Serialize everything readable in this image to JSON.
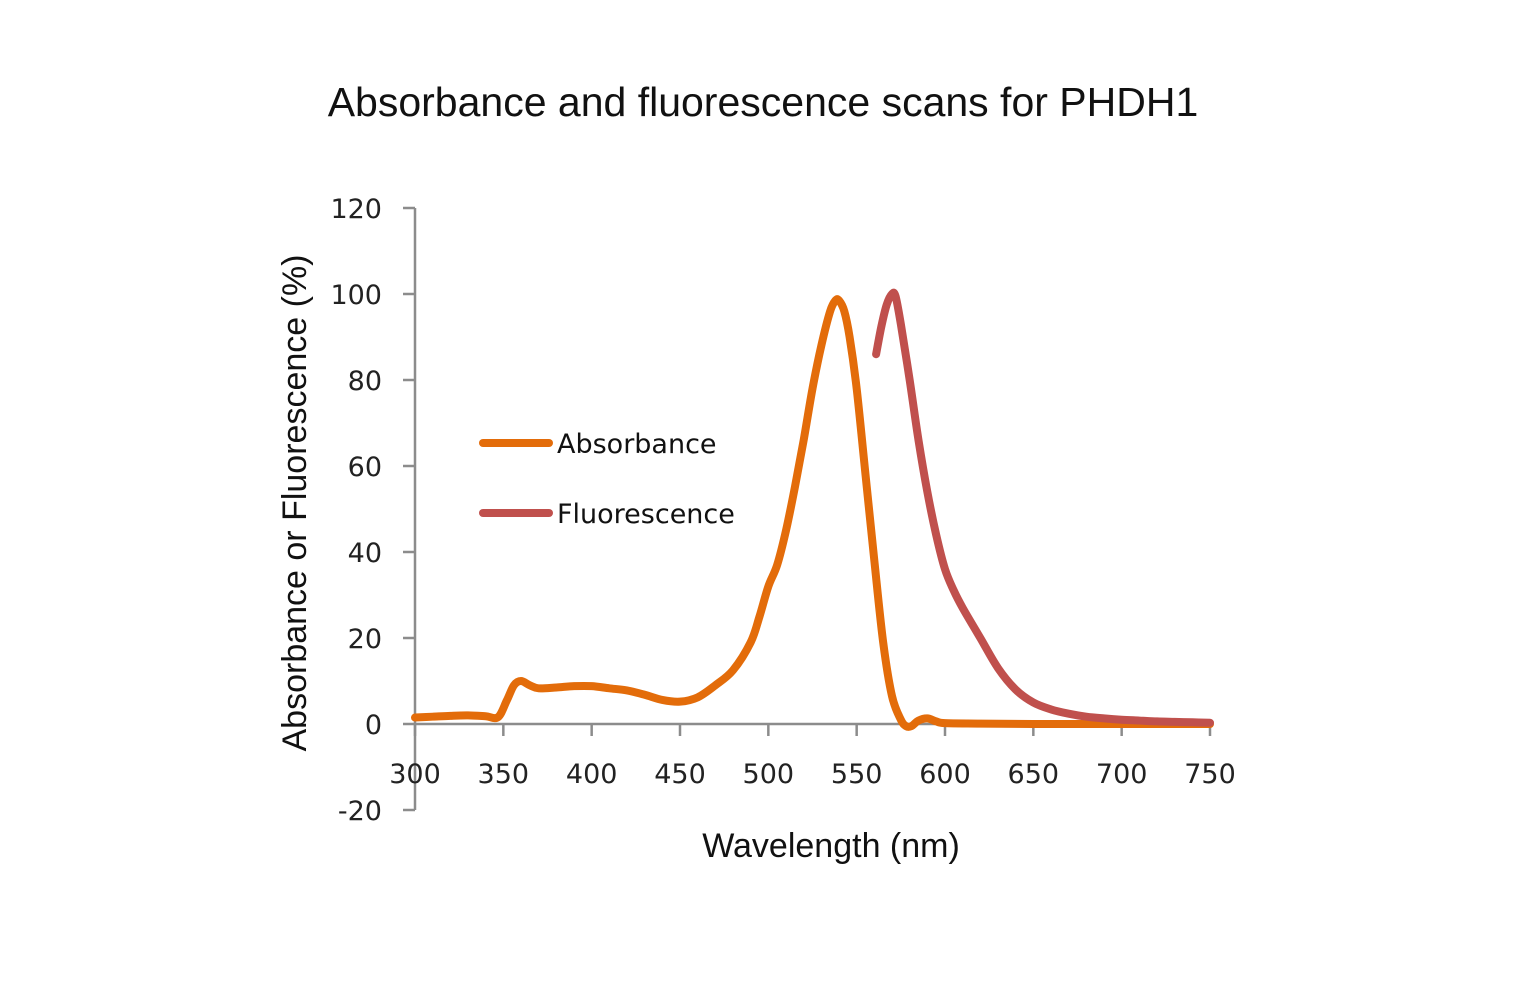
{
  "chart_data": {
    "type": "line",
    "title": "Absorbance and fluorescence scans for PHDH1",
    "xlabel": "Wavelength (nm)",
    "ylabel": "Absorbance or Fluorescence (%)",
    "xlim": [
      300,
      750
    ],
    "ylim": [
      -20,
      120
    ],
    "x_ticks": [
      "300",
      "350",
      "400",
      "450",
      "500",
      "550",
      "600",
      "650",
      "700",
      "750"
    ],
    "y_ticks": [
      "120",
      "100",
      "80",
      "60",
      "40",
      "20",
      "0",
      "-20"
    ],
    "grid": false,
    "legend_position": "inside-left",
    "series": [
      {
        "name": "Absorbance",
        "color": "#E36C0A",
        "x": [
          300,
          310,
          320,
          330,
          340,
          347,
          352,
          356,
          360,
          365,
          370,
          380,
          390,
          400,
          410,
          420,
          430,
          440,
          450,
          460,
          470,
          480,
          490,
          495,
          500,
          505,
          510,
          515,
          520,
          525,
          530,
          535,
          538,
          540,
          543,
          546,
          550,
          555,
          560,
          565,
          570,
          575,
          578,
          581,
          585,
          590,
          595,
          600,
          620,
          650,
          700,
          750
        ],
        "y": [
          1.5,
          1.7,
          1.9,
          2.0,
          1.8,
          1.6,
          5.5,
          9.0,
          10.0,
          9.0,
          8.3,
          8.5,
          8.8,
          8.8,
          8.3,
          7.8,
          6.8,
          5.6,
          5.2,
          6.2,
          9.0,
          12.5,
          19.0,
          25.0,
          32.0,
          37.0,
          45.0,
          55.0,
          66.0,
          78.0,
          88.0,
          96.0,
          98.5,
          98.5,
          96.0,
          90.0,
          78.0,
          58.0,
          38.0,
          19.0,
          6.5,
          1.0,
          -0.5,
          -0.5,
          0.8,
          1.3,
          0.6,
          0.2,
          0.1,
          0.0,
          0.0,
          0.0
        ]
      },
      {
        "name": "Fluorescence",
        "color": "#C0504D",
        "x": [
          561,
          564,
          567,
          570,
          572,
          575,
          580,
          585,
          590,
          595,
          600,
          605,
          610,
          620,
          630,
          640,
          650,
          660,
          670,
          680,
          690,
          700,
          710,
          720,
          730,
          740,
          750
        ],
        "y": [
          86.0,
          92.5,
          97.5,
          100.0,
          99.5,
          93.0,
          80.0,
          66.0,
          54.0,
          44.0,
          36.0,
          31.0,
          27.0,
          20.0,
          13.0,
          8.0,
          5.0,
          3.4,
          2.4,
          1.7,
          1.3,
          1.0,
          0.8,
          0.6,
          0.5,
          0.4,
          0.3
        ]
      }
    ]
  },
  "legend": {
    "items": [
      {
        "label": "Absorbance",
        "color": "#E36C0A"
      },
      {
        "label": "Fluorescence",
        "color": "#C0504D"
      }
    ]
  },
  "colors": {
    "axis": "#8C8C8C",
    "background": "#FFFFFF",
    "text": "#111111"
  }
}
